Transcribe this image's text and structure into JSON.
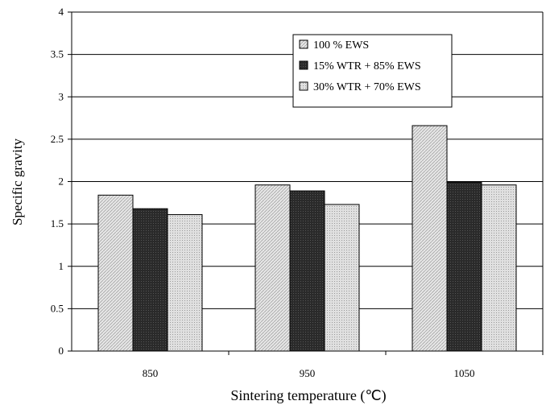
{
  "chart_data": {
    "type": "bar",
    "title": "",
    "xlabel": "Sintering temperature (℃)",
    "ylabel": "Specific gravity",
    "categories": [
      "850",
      "950",
      "1050"
    ],
    "ylim": [
      0,
      4
    ],
    "yticks": [
      "0",
      "0.5",
      "1",
      "1.5",
      "2",
      "2.5",
      "3",
      "3.5",
      "4"
    ],
    "grid": true,
    "legend_position": "top-right",
    "series": [
      {
        "name": "100 % EWS",
        "values": [
          1.84,
          1.96,
          2.66
        ],
        "pattern": "light-hatch"
      },
      {
        "name": "15% WTR + 85% EWS",
        "values": [
          1.68,
          1.89,
          1.99
        ],
        "pattern": "dark"
      },
      {
        "name": "30% WTR + 70% EWS",
        "values": [
          1.61,
          1.73,
          1.96
        ],
        "pattern": "light-dots"
      }
    ]
  }
}
